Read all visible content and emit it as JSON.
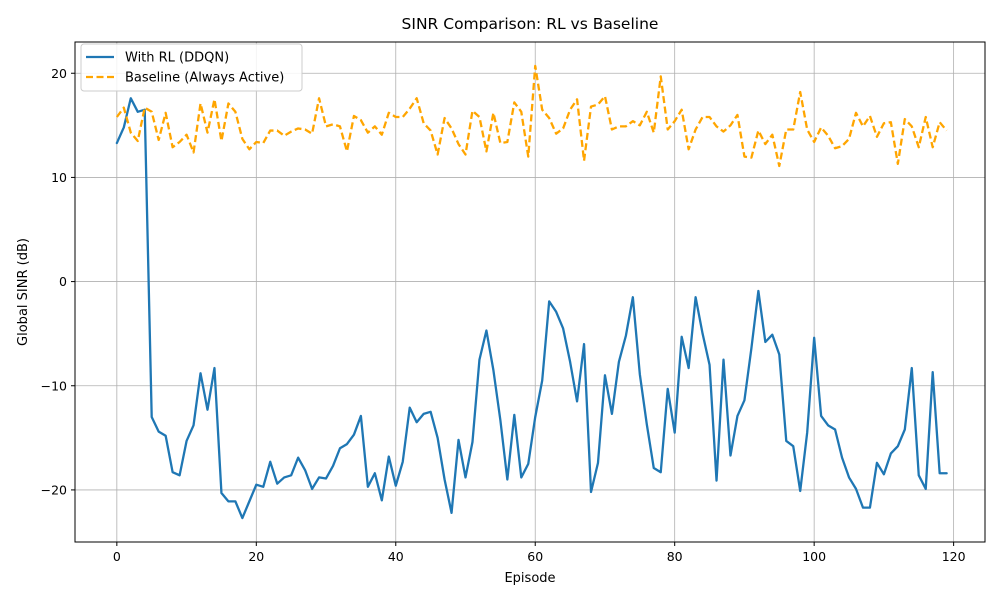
{
  "chart_data": {
    "type": "line",
    "title": "SINR Comparison: RL vs Baseline",
    "xlabel": "Episode",
    "ylabel": "Global SINR (dB)",
    "xlim": [
      -6,
      124.5
    ],
    "ylim": [
      -25,
      23
    ],
    "xticks": [
      0,
      20,
      40,
      60,
      80,
      100,
      120
    ],
    "yticks": [
      -20,
      -10,
      0,
      10,
      20
    ],
    "grid": true,
    "legend_position": "upper-left",
    "series": [
      {
        "name": "With RL (DDQN)",
        "color": "#1f77b4",
        "style": "solid",
        "values": [
          13.3,
          14.8,
          17.6,
          16.3,
          16.5,
          -13.0,
          -14.4,
          -14.8,
          -18.3,
          -18.6,
          -15.3,
          -13.8,
          -8.8,
          -12.3,
          -8.3,
          -20.3,
          -21.1,
          -21.1,
          -22.7,
          -21.1,
          -19.5,
          -19.7,
          -17.3,
          -19.4,
          -18.8,
          -18.6,
          -16.9,
          -18.1,
          -19.9,
          -18.8,
          -18.9,
          -17.7,
          -16.0,
          -15.6,
          -14.7,
          -12.9,
          -19.7,
          -18.4,
          -21.0,
          -16.8,
          -19.6,
          -17.3,
          -12.1,
          -13.5,
          -12.7,
          -12.5,
          -15.0,
          -19.0,
          -22.2,
          -15.2,
          -18.8,
          -15.4,
          -7.5,
          -4.7,
          -8.5,
          -13.3,
          -19.0,
          -12.8,
          -18.8,
          -17.5,
          -13.0,
          -9.5,
          -1.9,
          -2.9,
          -4.5,
          -7.7,
          -11.5,
          -6.0,
          -20.2,
          -17.4,
          -9.0,
          -12.7,
          -7.7,
          -5.2,
          -1.5,
          -8.9,
          -13.7,
          -17.9,
          -18.3,
          -10.3,
          -14.5,
          -5.3,
          -8.3,
          -1.5,
          -5.0,
          -8.0,
          -19.1,
          -7.5,
          -16.7,
          -12.9,
          -11.4,
          -6.4,
          -0.9,
          -5.8,
          -5.1,
          -7.0,
          -15.3,
          -15.8,
          -20.1,
          -14.5,
          -5.4,
          -12.9,
          -13.8,
          -14.2,
          -16.9,
          -18.8,
          -19.9,
          -21.7,
          -21.7,
          -17.4,
          -18.5,
          -16.5,
          -15.8,
          -14.2,
          -8.3,
          -18.6,
          -19.9,
          -8.7,
          -18.4,
          -18.4
        ]
      },
      {
        "name": "Baseline (Always Active)",
        "color": "#ffa500",
        "style": "dashed",
        "values": [
          15.8,
          16.7,
          14.3,
          13.5,
          16.7,
          16.3,
          13.6,
          16.2,
          12.9,
          13.4,
          14.1,
          12.4,
          17.1,
          14.3,
          17.5,
          13.5,
          17.1,
          16.3,
          13.7,
          12.7,
          13.4,
          13.3,
          14.5,
          14.5,
          14.0,
          14.4,
          14.7,
          14.6,
          14.2,
          17.6,
          14.9,
          15.1,
          14.9,
          12.5,
          15.9,
          15.5,
          14.3,
          14.9,
          14.1,
          16.2,
          15.8,
          15.8,
          16.6,
          17.6,
          15.2,
          14.5,
          12.2,
          15.7,
          14.7,
          13.2,
          12.2,
          16.4,
          15.8,
          12.5,
          16.2,
          13.3,
          13.4,
          17.2,
          16.3,
          12.0,
          20.7,
          16.5,
          15.7,
          14.2,
          14.7,
          16.5,
          17.5,
          11.6,
          16.8,
          17.0,
          17.8,
          14.6,
          14.9,
          14.9,
          15.4,
          15.0,
          16.3,
          14.3,
          19.7,
          14.6,
          15.4,
          16.5,
          12.7,
          14.6,
          15.8,
          15.8,
          14.9,
          14.4,
          15.0,
          16.0,
          12.0,
          11.9,
          14.5,
          13.2,
          14.1,
          11.1,
          14.6,
          14.6,
          18.2,
          14.6,
          13.4,
          14.8,
          14.0,
          12.8,
          13.0,
          13.7,
          16.2,
          14.9,
          15.9,
          13.9,
          15.2,
          15.3,
          11.3,
          15.6,
          14.9,
          12.9,
          15.8,
          12.9,
          15.3,
          14.5
        ]
      }
    ]
  }
}
